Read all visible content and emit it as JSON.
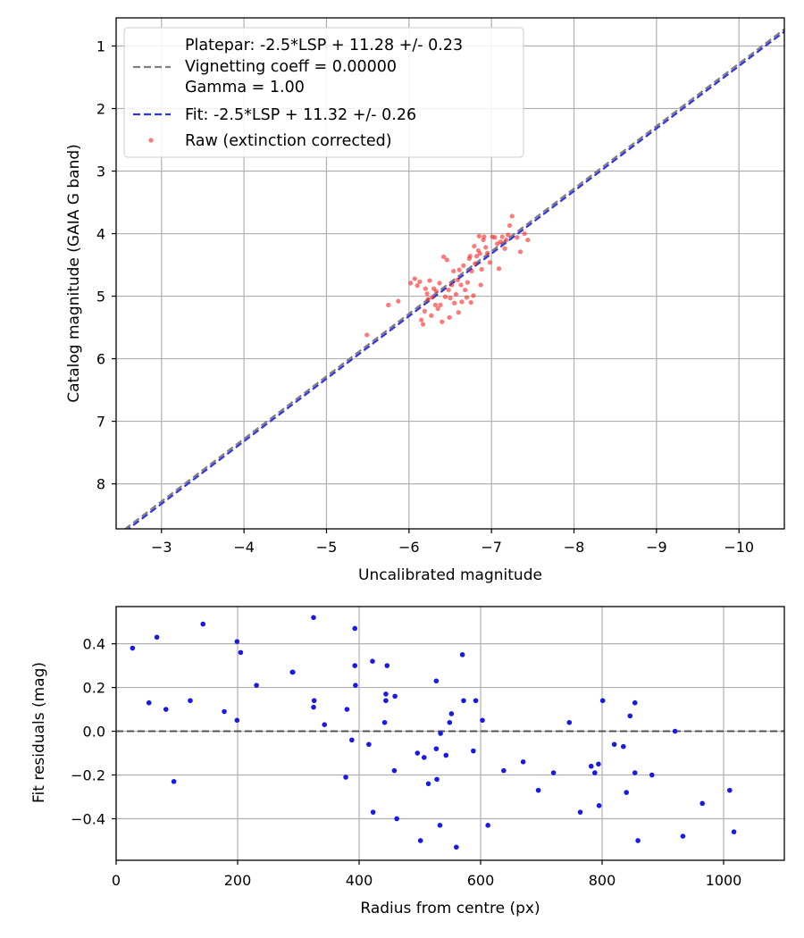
{
  "colors": {
    "platepar": "#808080",
    "fit": "#3333ee",
    "raw": "#ff2020",
    "residual": "#1a1ae6",
    "zero_line": "#555555",
    "grid": "#b0b0b0"
  },
  "chart_data": [
    {
      "type": "scatter",
      "title": "",
      "xlabel": "Uncalibrated magnitude",
      "ylabel": "Catalog magnitude (GAIA G band)",
      "xlim": [
        -2.45,
        -10.55
      ],
      "ylim": [
        8.72,
        0.55
      ],
      "x_inverted": true,
      "y_inverted": true,
      "xticks": [
        -3,
        -4,
        -5,
        -6,
        -7,
        -8,
        -9,
        -10
      ],
      "xtick_labels": [
        "−3",
        "−4",
        "−5",
        "−6",
        "−7",
        "−8",
        "−9",
        "−10"
      ],
      "yticks": [
        1,
        2,
        3,
        4,
        5,
        6,
        7,
        8
      ],
      "ytick_labels": [
        "1",
        "2",
        "3",
        "4",
        "5",
        "6",
        "7",
        "8"
      ],
      "grid": true,
      "legend_position": "top-left",
      "series": [
        {
          "name": "Platepar line",
          "kind": "line",
          "style": "dashed",
          "slope": 1.0,
          "intercept": 11.28
        },
        {
          "name": "Fit line",
          "kind": "line",
          "style": "dashed",
          "slope": 1.0,
          "intercept": 11.32
        },
        {
          "name": "Raw (extinction corrected)",
          "kind": "scatter",
          "points": [
            [
              -5.49,
              5.62
            ],
            [
              -5.75,
              5.14
            ],
            [
              -5.87,
              5.08
            ],
            [
              -6.02,
              4.79
            ],
            [
              -6.07,
              4.72
            ],
            [
              -6.1,
              4.83
            ],
            [
              -6.13,
              4.77
            ],
            [
              -6.15,
              5.38
            ],
            [
              -6.17,
              5.45
            ],
            [
              -6.19,
              5.24
            ],
            [
              -6.2,
              4.88
            ],
            [
              -6.22,
              4.96
            ],
            [
              -6.23,
              5.05
            ],
            [
              -6.25,
              4.75
            ],
            [
              -6.27,
              5.31
            ],
            [
              -6.28,
              5.02
            ],
            [
              -6.3,
              4.88
            ],
            [
              -6.32,
              5.14
            ],
            [
              -6.33,
              4.92
            ],
            [
              -6.35,
              5.2
            ],
            [
              -6.37,
              4.79
            ],
            [
              -6.38,
              5.14
            ],
            [
              -6.4,
              5.41
            ],
            [
              -6.42,
              4.37
            ],
            [
              -6.44,
              5.01
            ],
            [
              -6.46,
              4.42
            ],
            [
              -6.48,
              4.9
            ],
            [
              -6.49,
              5.34
            ],
            [
              -6.5,
              5.03
            ],
            [
              -6.52,
              4.82
            ],
            [
              -6.54,
              4.6
            ],
            [
              -6.55,
              5.11
            ],
            [
              -6.57,
              4.97
            ],
            [
              -6.59,
              4.74
            ],
            [
              -6.6,
              5.26
            ],
            [
              -6.61,
              4.58
            ],
            [
              -6.63,
              4.82
            ],
            [
              -6.64,
              5.09
            ],
            [
              -6.66,
              4.51
            ],
            [
              -6.68,
              4.9
            ],
            [
              -6.7,
              5.02
            ],
            [
              -6.71,
              4.78
            ],
            [
              -6.73,
              4.4
            ],
            [
              -6.74,
              4.36
            ],
            [
              -6.75,
              5.1
            ],
            [
              -6.76,
              4.6
            ],
            [
              -6.78,
              4.99
            ],
            [
              -6.79,
              4.2
            ],
            [
              -6.8,
              4.48
            ],
            [
              -6.82,
              4.36
            ],
            [
              -6.84,
              4.27
            ],
            [
              -6.85,
              4.04
            ],
            [
              -6.86,
              4.32
            ],
            [
              -6.87,
              4.82
            ],
            [
              -6.88,
              4.57
            ],
            [
              -6.9,
              4.1
            ],
            [
              -6.91,
              4.05
            ],
            [
              -6.93,
              4.22
            ],
            [
              -6.95,
              4.31
            ],
            [
              -6.98,
              4.46
            ],
            [
              -7.01,
              4.05
            ],
            [
              -7.04,
              4.06
            ],
            [
              -7.07,
              4.16
            ],
            [
              -7.09,
              4.56
            ],
            [
              -7.11,
              4.13
            ],
            [
              -7.13,
              4.05
            ],
            [
              -7.16,
              4.24
            ],
            [
              -7.18,
              4.1
            ],
            [
              -7.2,
              4.02
            ],
            [
              -7.22,
              3.87
            ],
            [
              -7.25,
              3.72
            ],
            [
              -7.31,
              4.06
            ],
            [
              -7.35,
              4.29
            ],
            [
              -7.4,
              4.0
            ],
            [
              -7.44,
              4.1
            ]
          ]
        }
      ],
      "legend": [
        "Platepar: -2.5*LSP + 11.28 +/- 0.23",
        "Vignetting coeff = 0.00000",
        "Gamma = 1.00",
        "Fit: -2.5*LSP + 11.32 +/- 0.26",
        "Raw (extinction corrected)"
      ]
    },
    {
      "type": "scatter",
      "title": "",
      "xlabel": "Radius from centre (px)",
      "ylabel": "Fit residuals (mag)",
      "xlim": [
        0,
        1100
      ],
      "ylim": [
        -0.59,
        0.57
      ],
      "xticks": [
        0,
        200,
        400,
        600,
        800,
        1000
      ],
      "xtick_labels": [
        "0",
        "200",
        "400",
        "600",
        "800",
        "1000"
      ],
      "yticks": [
        -0.4,
        -0.2,
        0.0,
        0.2,
        0.4
      ],
      "ytick_labels": [
        "−0.4",
        "−0.2",
        "0.0",
        "0.2",
        "0.4"
      ],
      "grid": true,
      "reference_line": 0.0,
      "series": [
        {
          "name": "Residuals",
          "points": [
            [
              27,
              0.38
            ],
            [
              54,
              0.13
            ],
            [
              67,
              0.43
            ],
            [
              82,
              0.1
            ],
            [
              95,
              -0.23
            ],
            [
              122,
              0.14
            ],
            [
              143,
              0.49
            ],
            [
              178,
              0.09
            ],
            [
              199,
              0.41
            ],
            [
              199,
              0.05
            ],
            [
              205,
              0.36
            ],
            [
              231,
              0.21
            ],
            [
              290,
              0.27
            ],
            [
              291,
              0.27
            ],
            [
              325,
              0.52
            ],
            [
              325,
              0.11
            ],
            [
              326,
              0.14
            ],
            [
              343,
              0.03
            ],
            [
              378,
              -0.21
            ],
            [
              380,
              0.1
            ],
            [
              388,
              -0.04
            ],
            [
              393,
              0.47
            ],
            [
              393,
              0.3
            ],
            [
              394,
              0.21
            ],
            [
              416,
              -0.06
            ],
            [
              422,
              0.32
            ],
            [
              423,
              -0.37
            ],
            [
              442,
              0.04
            ],
            [
              444,
              0.17
            ],
            [
              444,
              0.14
            ],
            [
              446,
              0.3
            ],
            [
              458,
              -0.18
            ],
            [
              459,
              0.16
            ],
            [
              462,
              -0.4
            ],
            [
              496,
              -0.1
            ],
            [
              501,
              -0.5
            ],
            [
              507,
              -0.12
            ],
            [
              514,
              -0.24
            ],
            [
              527,
              -0.08
            ],
            [
              527,
              0.23
            ],
            [
              528,
              -0.22
            ],
            [
              533,
              -0.43
            ],
            [
              534,
              -0.01
            ],
            [
              543,
              -0.11
            ],
            [
              549,
              0.04
            ],
            [
              552,
              0.08
            ],
            [
              560,
              -0.53
            ],
            [
              570,
              0.35
            ],
            [
              572,
              0.14
            ],
            [
              588,
              -0.09
            ],
            [
              592,
              0.14
            ],
            [
              603,
              0.05
            ],
            [
              612,
              -0.43
            ],
            [
              638,
              -0.18
            ],
            [
              670,
              -0.14
            ],
            [
              695,
              -0.27
            ],
            [
              720,
              -0.19
            ],
            [
              746,
              0.04
            ],
            [
              764,
              -0.37
            ],
            [
              782,
              -0.16
            ],
            [
              788,
              -0.19
            ],
            [
              794,
              -0.15
            ],
            [
              795,
              -0.34
            ],
            [
              801,
              0.14
            ],
            [
              820,
              -0.06
            ],
            [
              835,
              -0.07
            ],
            [
              840,
              -0.28
            ],
            [
              846,
              0.07
            ],
            [
              854,
              0.13
            ],
            [
              854,
              -0.19
            ],
            [
              859,
              -0.5
            ],
            [
              882,
              -0.2
            ],
            [
              920,
              0.0
            ],
            [
              933,
              -0.48
            ],
            [
              965,
              -0.33
            ],
            [
              1010,
              -0.27
            ],
            [
              1017,
              -0.46
            ]
          ]
        }
      ]
    }
  ]
}
